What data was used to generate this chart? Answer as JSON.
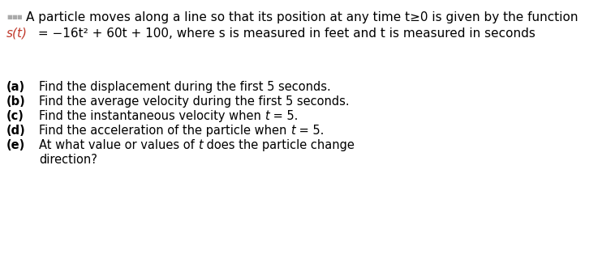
{
  "background_color": "#ffffff",
  "fig_width": 7.58,
  "fig_height": 3.3,
  "dpi": 100,
  "dots_color": "#aaaaaa",
  "dots_fontsize": 8,
  "line1_text": "A particle moves along a line so that its position at any time t≥0 is given by the function",
  "line1_color": "#000000",
  "line1_fontsize": 11,
  "formula_st_text": "s(t)",
  "formula_st_color": "#c0392b",
  "formula_eq_text": " = −16t² + 60t + 100, where s is measured in feet and t is measured in seconds",
  "formula_color": "#000000",
  "formula_fontsize": 11,
  "items": [
    {
      "label": "(a)",
      "text_parts": [
        {
          "text": "Find the displacement during the first 5 seconds.",
          "style": "normal"
        }
      ]
    },
    {
      "label": "(b)",
      "text_parts": [
        {
          "text": "Find the average velocity during the first 5 seconds.",
          "style": "normal"
        }
      ]
    },
    {
      "label": "(c)",
      "text_parts": [
        {
          "text": "Find the instantaneous velocity when ",
          "style": "normal"
        },
        {
          "text": "t",
          "style": "italic"
        },
        {
          "text": " = 5.",
          "style": "normal"
        }
      ]
    },
    {
      "label": "(d)",
      "text_parts": [
        {
          "text": "Find the acceleration of the particle when ",
          "style": "normal"
        },
        {
          "text": "t",
          "style": "italic"
        },
        {
          "text": " = 5.",
          "style": "normal"
        }
      ]
    },
    {
      "label": "(e)",
      "text_parts": [
        {
          "text": "At what value or values of ",
          "style": "normal"
        },
        {
          "text": "t",
          "style": "italic"
        },
        {
          "text": " does the particle change",
          "style": "normal"
        }
      ]
    },
    {
      "label": "",
      "text_parts": [
        {
          "text": "direction?",
          "style": "normal"
        }
      ]
    }
  ],
  "item_fontsize": 10.5,
  "item_color": "#000000",
  "label_color": "#000000"
}
